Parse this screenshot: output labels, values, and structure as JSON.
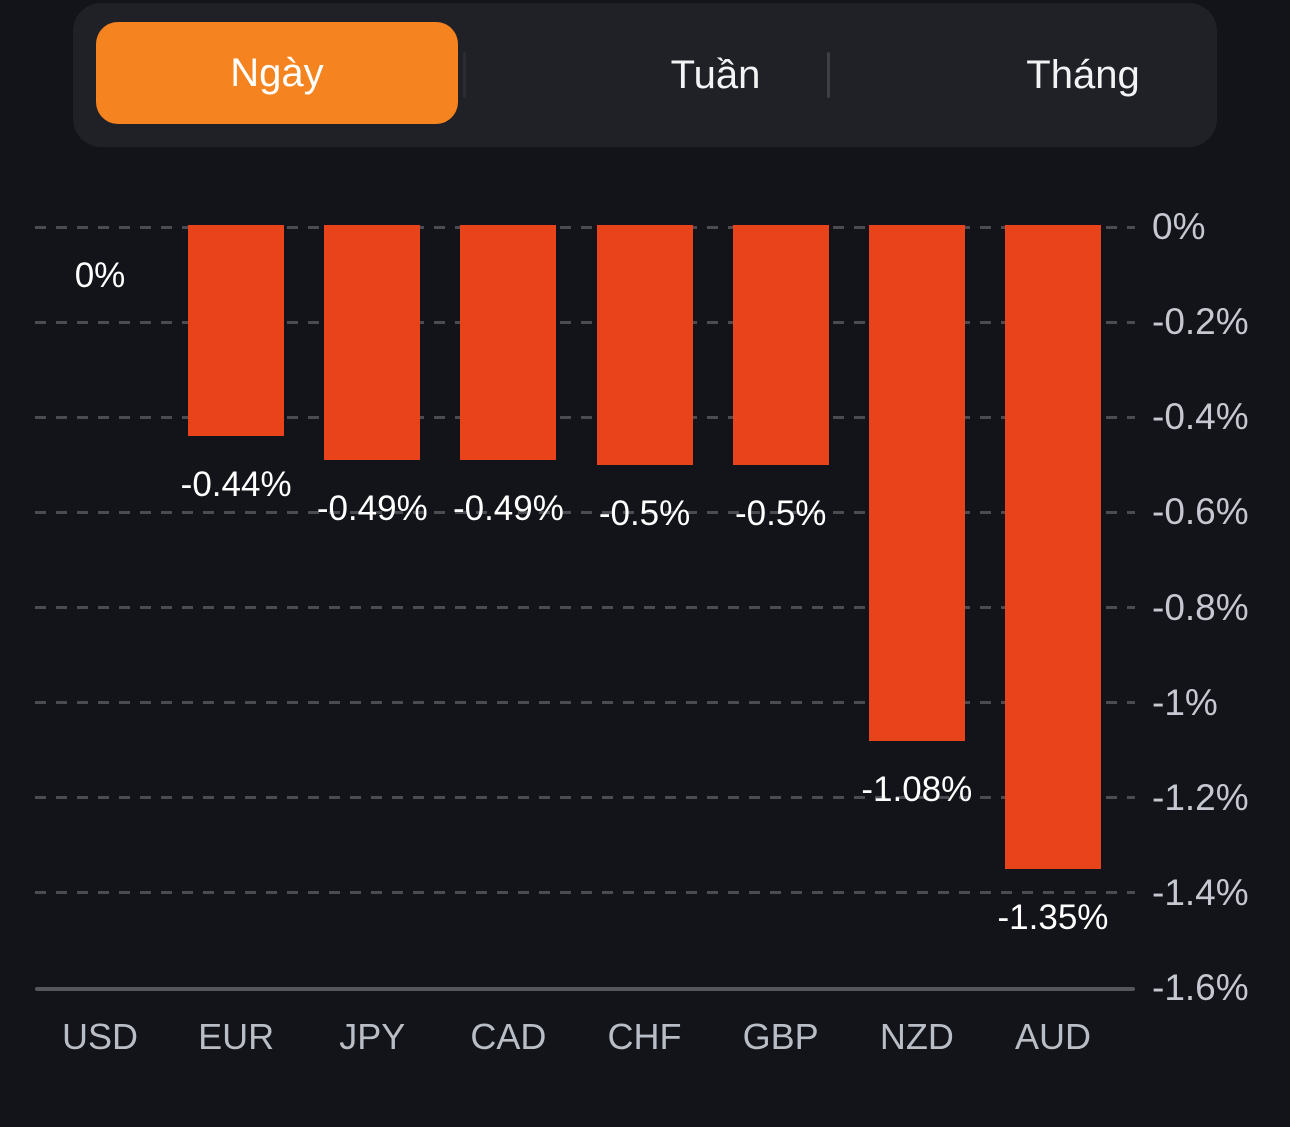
{
  "tab_bar": {
    "tabs": [
      {
        "label": "Ngày",
        "selected": true
      },
      {
        "label": "Tuần",
        "selected": false
      },
      {
        "label": "Tháng",
        "selected": false
      }
    ],
    "selected_color": "#f5831f"
  },
  "colors": {
    "page_background": "#131419",
    "tabbar_background": "#1f2126",
    "accent_orange": "#f5831f",
    "bar_color": "#e8431a",
    "gridline": "#4a4c52",
    "axis_label": "#c5c8d0",
    "value_label": "#ffffff"
  },
  "chart_data": {
    "type": "bar",
    "title": "",
    "xlabel": "",
    "ylabel": "",
    "categories": [
      "USD",
      "EUR",
      "JPY",
      "CAD",
      "CHF",
      "GBP",
      "NZD",
      "AUD"
    ],
    "values": [
      0,
      -0.44,
      -0.49,
      -0.49,
      -0.5,
      -0.5,
      -1.08,
      -1.35
    ],
    "bar_value_labels": [
      "0%",
      "-0.44%",
      "-0.49%",
      "-0.49%",
      "-0.5%",
      "-0.5%",
      "-1.08%",
      "-1.35%"
    ],
    "y_ticks": [
      {
        "value": 0,
        "label": "0%"
      },
      {
        "value": -0.2,
        "label": "-0.2%"
      },
      {
        "value": -0.4,
        "label": "-0.4%"
      },
      {
        "value": -0.6,
        "label": "-0.6%"
      },
      {
        "value": -0.8,
        "label": "-0.8%"
      },
      {
        "value": -1,
        "label": "-1%"
      },
      {
        "value": -1.2,
        "label": "-1.2%"
      },
      {
        "value": -1.4,
        "label": "-1.4%"
      },
      {
        "value": -1.6,
        "label": "-1.6%"
      }
    ],
    "ylim": [
      -1.6,
      0
    ],
    "y_axis_side": "right",
    "grid": "horizontal-dashed",
    "legend": null,
    "bar_color": "#e8431a"
  }
}
